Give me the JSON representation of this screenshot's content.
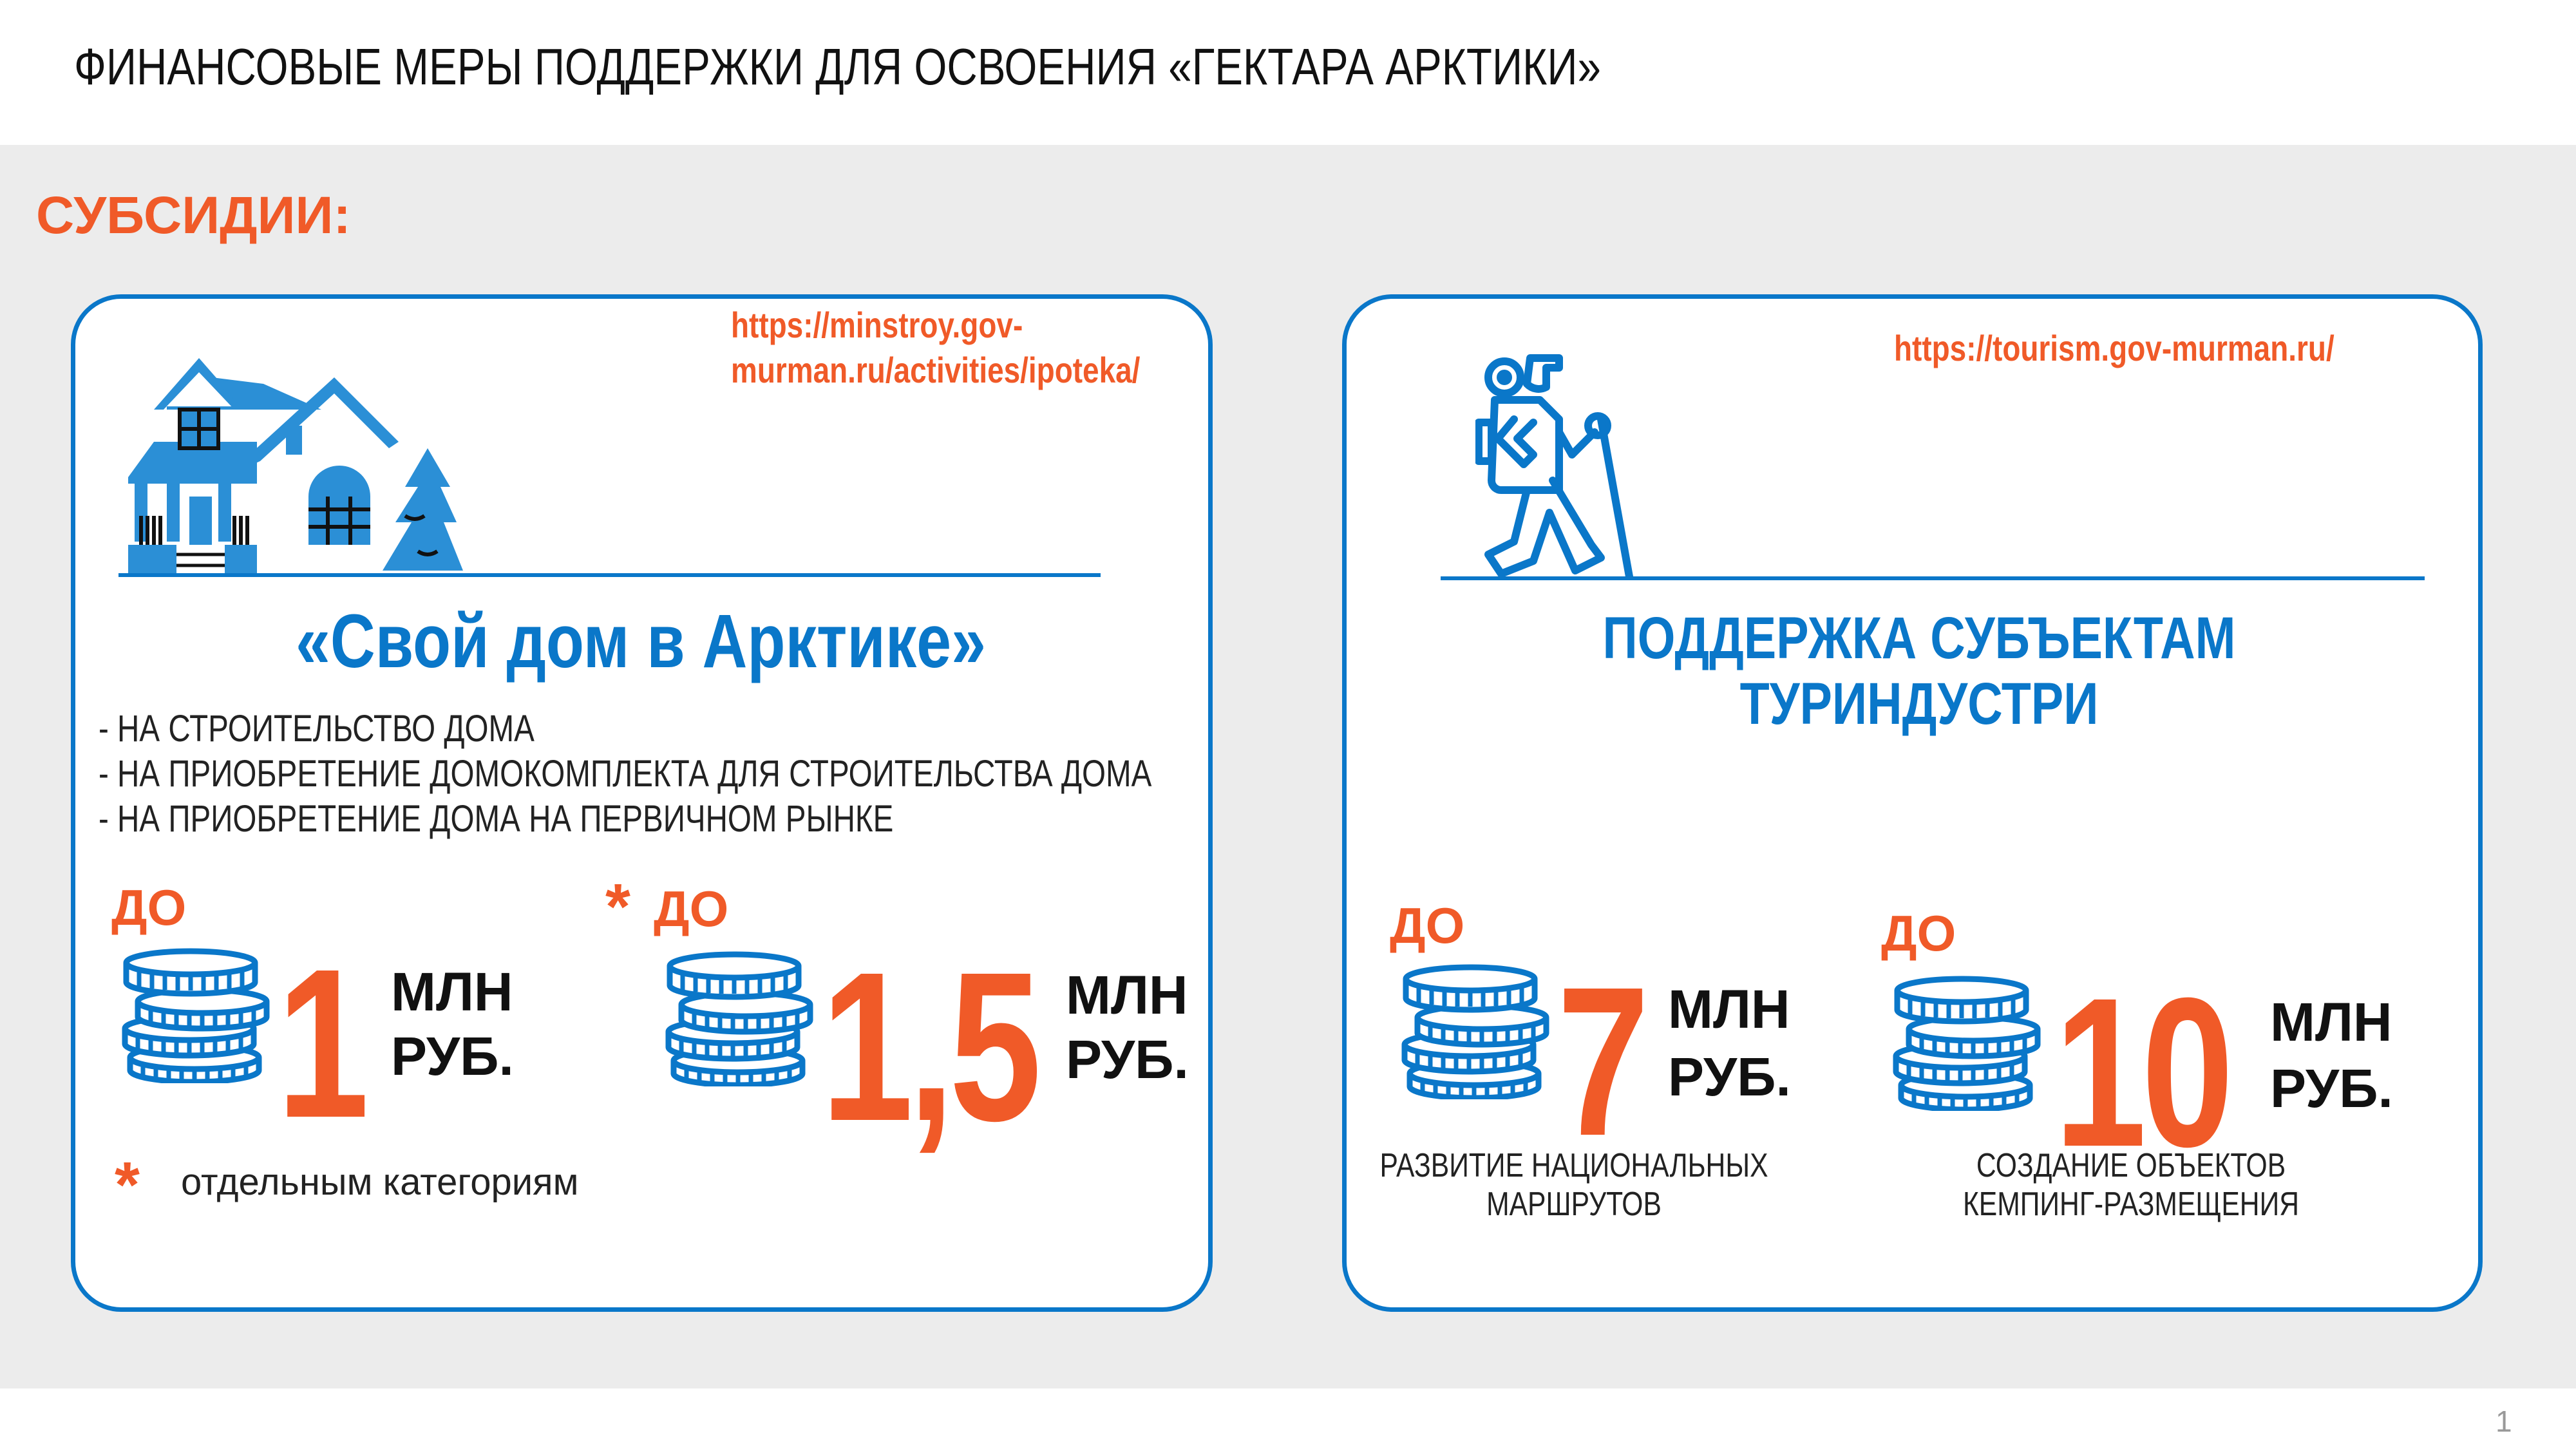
{
  "header": {
    "title": "ФИНАНСОВЫЕ МЕРЫ ПОДДЕРЖКИ ДЛЯ ОСВОЕНИЯ «ГЕКТАРА АРКТИКИ»"
  },
  "section_title": "СУБСИДИИ:",
  "colors": {
    "accent_orange": "#f05a28",
    "brand_blue": "#0a77c9",
    "band_gray": "#ececec"
  },
  "left_card": {
    "url_line1": "https://minstroy.gov-",
    "url_line2": "murman.ru/activities/ipoteka/",
    "icon": "house-icon",
    "program_title": "«Свой дом в Арктике»",
    "bullets": [
      "- НА СТРОИТЕЛЬСТВО ДОМА",
      "- НА ПРИОБРЕТЕНИЕ ДОМОКОМПЛЕКТА ДЛЯ СТРОИТЕЛЬСТВА ДОМА",
      "- НА ПРИОБРЕТЕНИЕ ДОМА НА ПЕРВИЧНОМ РЫНКЕ"
    ],
    "amounts": [
      {
        "prefix": "ДО",
        "value": "1",
        "unit1": "МЛН",
        "unit2": "РУБ."
      },
      {
        "asterisk": "*",
        "prefix": "ДО",
        "value": "1,5",
        "unit1": "МЛН",
        "unit2": "РУБ."
      }
    ],
    "footnote_mark": "*",
    "footnote": "отдельным категориям"
  },
  "right_card": {
    "url": "https://tourism.gov-murman.ru/",
    "icon": "hiker-icon",
    "title_line1": "ПОДДЕРЖКА СУБЪЕКТАМ",
    "title_line2": "ТУРИНДУСТРИ",
    "amounts": [
      {
        "prefix": "ДО",
        "value": "7",
        "unit1": "МЛН",
        "unit2": "РУБ.",
        "caption1": "РАЗВИТИЕ НАЦИОНАЛЬНЫХ",
        "caption2": "МАРШРУТОВ"
      },
      {
        "prefix": "ДО",
        "value": "10",
        "unit1": "МЛН",
        "unit2": "РУБ.",
        "caption1": "СОЗДАНИЕ ОБЪЕКТОВ",
        "caption2": "КЕМПИНГ-РАЗМЕЩЕНИЯ"
      }
    ]
  },
  "page_number": "1"
}
